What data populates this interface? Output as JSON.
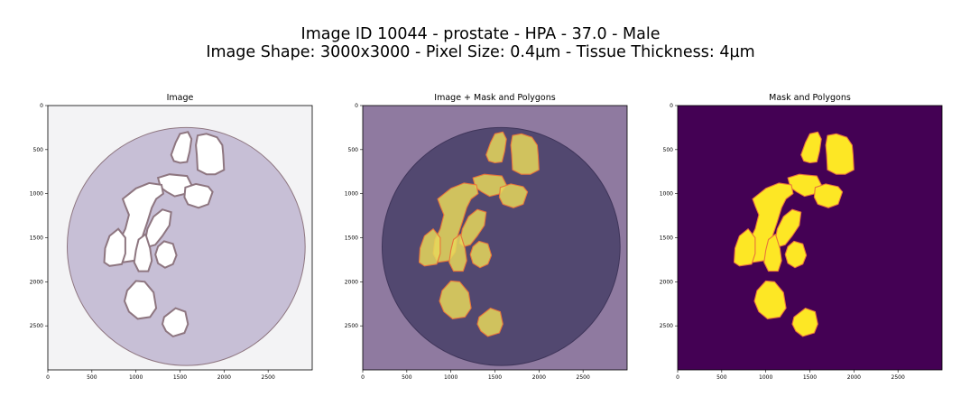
{
  "figure": {
    "suptitle_line1": "Image ID 10044 - prostate - HPA - 37.0 - Male",
    "suptitle_line2": "Image Shape: 3000x3000 - Pixel Size: 0.4µm - Tissue Thickness: 4µm"
  },
  "colors": {
    "mask_background": "#440154",
    "mask_foreground": "#fde725",
    "polygon_edge": "#e8743b",
    "overlay_background": "#8f7aa0",
    "overlay_tissue": "#524870",
    "tissue_stroma": "#c7bfd6",
    "tissue_gland": "#8e7680",
    "slide_background": "#f3f3f5"
  },
  "chart_data": [
    {
      "type": "image",
      "title": "Image",
      "xlim": [
        0,
        3000
      ],
      "ylim": [
        3000,
        0
      ],
      "xticks": [
        0,
        500,
        1000,
        1500,
        2000,
        2500
      ],
      "yticks": [
        0,
        500,
        1000,
        1500,
        2000,
        2500
      ],
      "content": "H&E-like stained tissue core (circular)"
    },
    {
      "type": "image",
      "title": "Image + Mask and Polygons",
      "xlim": [
        0,
        3000
      ],
      "ylim": [
        3000,
        0
      ],
      "xticks": [
        0,
        500,
        1000,
        1500,
        2000,
        2500
      ],
      "yticks": [
        0,
        500,
        1000,
        1500,
        2000,
        2500
      ],
      "content": "tissue image overlaid with mask and polygons"
    },
    {
      "type": "image",
      "title": "Mask and Polygons",
      "xlim": [
        0,
        3000
      ],
      "ylim": [
        3000,
        0
      ],
      "xticks": [
        0,
        500,
        1000,
        1500,
        2000,
        2500
      ],
      "yticks": [
        0,
        500,
        1000,
        1500,
        2000,
        2500
      ],
      "content": "binary segmentation mask with polygon outlines"
    }
  ]
}
